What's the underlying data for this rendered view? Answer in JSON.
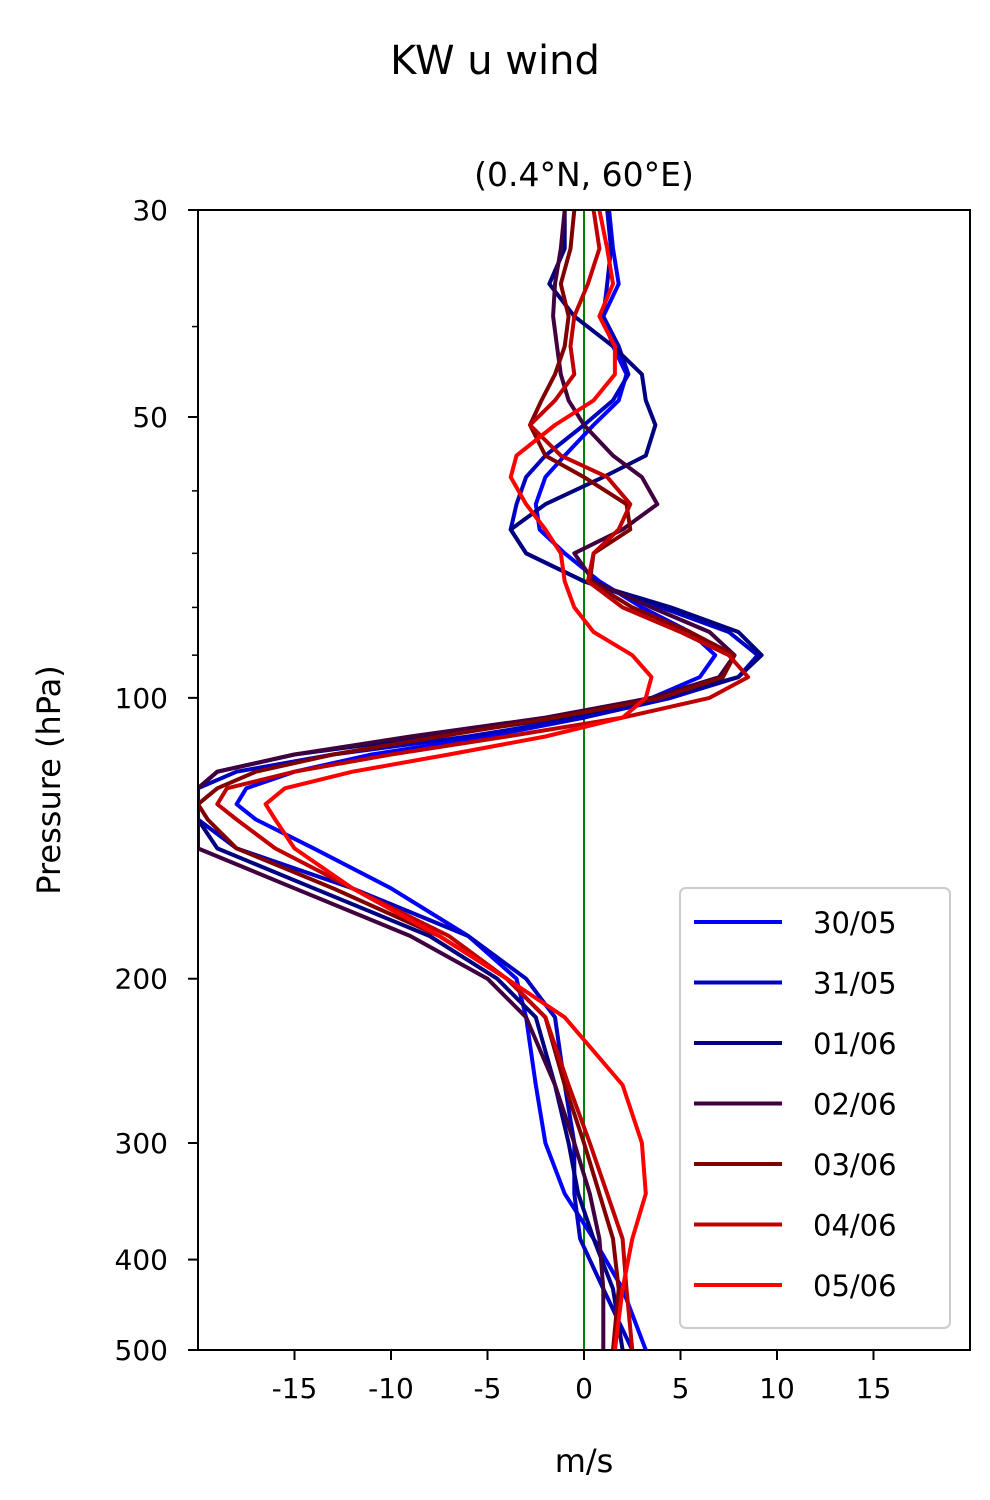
{
  "chart_data": {
    "type": "line",
    "title": "KW u wind",
    "subtitle": "(0.4°N, 60°E)",
    "xlabel": "m/s",
    "ylabel": "Pressure (hPa)",
    "xlim": [
      -20,
      20
    ],
    "ylim": [
      500,
      30
    ],
    "y_scale": "log",
    "xticks": [
      -15,
      -10,
      -5,
      0,
      5,
      10,
      15
    ],
    "xtick_labels": [
      "-15",
      "-10",
      "-5",
      "0",
      "5",
      "10",
      "15"
    ],
    "yticks": [
      30,
      50,
      100,
      200,
      300,
      400,
      500
    ],
    "ytick_labels": [
      "30",
      "50",
      "100",
      "200",
      "300",
      "400",
      "500"
    ],
    "grid": false,
    "legend_position": "lower-right",
    "reference_line": {
      "x": 0,
      "color": "#008000"
    },
    "series": [
      {
        "name": "30/05",
        "color": "#0000ff",
        "x": [
          1.3,
          1.5,
          1.8,
          1.0,
          1.5,
          2.2,
          1.8,
          0.5,
          -1.0,
          -2.0,
          -2.5,
          -2.3,
          -1.0,
          0.8,
          3.0,
          5.5,
          6.8,
          6.0,
          3.5,
          0.0,
          -5.0,
          -11.0,
          -15.0,
          -17.5,
          -18.0,
          -17.0,
          -14.0,
          -10.0,
          -6.0,
          -3.5,
          -3.0,
          -2.5,
          -2.0,
          -1.0,
          0.5,
          2.0,
          3.2
        ],
        "y": [
          30,
          33,
          36,
          39,
          42,
          45,
          48,
          51,
          55,
          58,
          62,
          66,
          70,
          75,
          80,
          85,
          90,
          95,
          100,
          105,
          110,
          115,
          120,
          125,
          130,
          135,
          145,
          160,
          180,
          200,
          220,
          260,
          300,
          340,
          380,
          430,
          500
        ]
      },
      {
        "name": "31/05",
        "color": "#0000c0",
        "x": [
          1.2,
          1.4,
          1.2,
          1.0,
          1.8,
          2.3,
          1.5,
          0.0,
          -2.0,
          -3.0,
          -3.5,
          -3.8,
          -3.0,
          0.0,
          4.0,
          7.5,
          9.0,
          8.0,
          4.5,
          0.0,
          -6.0,
          -13.0,
          -18.0,
          -20.0,
          -20.0,
          -20.0,
          -18.0,
          -12.0,
          -6.0,
          -3.0,
          -1.5,
          -1.0,
          -0.5,
          -0.5,
          -0.2,
          1.0,
          2.5
        ],
        "y": [
          30,
          33,
          36,
          39,
          42,
          45,
          48,
          51,
          55,
          58,
          62,
          66,
          70,
          75,
          80,
          85,
          90,
          95,
          100,
          105,
          110,
          115,
          120,
          125,
          130,
          135,
          145,
          160,
          180,
          200,
          220,
          260,
          300,
          340,
          380,
          430,
          500
        ]
      },
      {
        "name": "01/06",
        "color": "#000080",
        "x": [
          -1.0,
          -1.0,
          -1.8,
          -0.5,
          1.5,
          3.0,
          3.2,
          3.7,
          3.2,
          1.0,
          -2.0,
          -3.8,
          -3.0,
          0.0,
          4.5,
          8.0,
          9.2,
          8.0,
          4.0,
          -1.0,
          -8.0,
          -15.0,
          -19.0,
          -20.0,
          -20.0,
          -20.0,
          -19.0,
          -14.0,
          -8.0,
          -4.5,
          -2.5,
          -1.5,
          -0.8,
          -0.3,
          0.5,
          1.5,
          2.0
        ],
        "y": [
          30,
          33,
          36,
          39,
          42,
          45,
          48,
          51,
          55,
          58,
          62,
          66,
          70,
          75,
          80,
          85,
          90,
          95,
          100,
          105,
          110,
          115,
          120,
          125,
          130,
          135,
          145,
          160,
          180,
          200,
          220,
          260,
          300,
          340,
          380,
          430,
          500
        ]
      },
      {
        "name": "02/06",
        "color": "#400040",
        "x": [
          -1.0,
          -1.2,
          -1.5,
          -1.6,
          -1.4,
          -1.2,
          -0.8,
          0.0,
          1.5,
          3.0,
          3.8,
          2.0,
          -0.5,
          0.5,
          3.5,
          6.5,
          7.8,
          7.0,
          3.5,
          -2.0,
          -9.0,
          -15.0,
          -19.0,
          -20.0,
          -20.0,
          -20.0,
          -20.0,
          -15.0,
          -9.0,
          -5.0,
          -3.0,
          -1.5,
          -0.5,
          0.3,
          0.8,
          1.0,
          1.0
        ],
        "y": [
          30,
          33,
          36,
          39,
          42,
          45,
          48,
          51,
          55,
          58,
          62,
          66,
          70,
          75,
          80,
          85,
          90,
          95,
          100,
          105,
          110,
          115,
          120,
          125,
          130,
          135,
          145,
          160,
          180,
          200,
          220,
          260,
          300,
          340,
          380,
          430,
          500
        ]
      },
      {
        "name": "03/06",
        "color": "#800000",
        "x": [
          -0.5,
          -0.7,
          -1.2,
          -0.8,
          -1.0,
          -1.5,
          -2.2,
          -2.8,
          -2.0,
          0.0,
          2.2,
          2.4,
          0.5,
          0.3,
          2.5,
          5.5,
          7.8,
          7.2,
          4.0,
          -1.5,
          -7.5,
          -13.0,
          -17.0,
          -19.0,
          -20.0,
          -19.5,
          -18.0,
          -13.0,
          -7.5,
          -4.0,
          -2.0,
          -1.0,
          0.0,
          0.8,
          1.5,
          1.8,
          1.5
        ],
        "y": [
          30,
          33,
          36,
          39,
          42,
          45,
          48,
          51,
          55,
          58,
          62,
          66,
          70,
          75,
          80,
          85,
          90,
          95,
          100,
          105,
          110,
          115,
          120,
          125,
          130,
          135,
          145,
          160,
          180,
          200,
          220,
          260,
          300,
          340,
          380,
          430,
          500
        ]
      },
      {
        "name": "04/06",
        "color": "#c00000",
        "x": [
          0.5,
          0.8,
          0.2,
          -0.5,
          -0.7,
          -0.5,
          -1.5,
          -2.8,
          -1.2,
          1.2,
          2.4,
          1.8,
          0.5,
          0.2,
          2.0,
          5.0,
          7.5,
          8.5,
          6.5,
          2.0,
          -4.0,
          -10.0,
          -15.0,
          -18.5,
          -19.0,
          -18.0,
          -16.0,
          -12.0,
          -7.0,
          -4.0,
          -2.0,
          -0.8,
          0.3,
          1.2,
          2.0,
          2.2,
          2.5
        ],
        "y": [
          30,
          33,
          36,
          39,
          42,
          45,
          48,
          51,
          55,
          58,
          62,
          66,
          70,
          75,
          80,
          85,
          90,
          95,
          100,
          105,
          110,
          115,
          120,
          125,
          130,
          135,
          145,
          160,
          180,
          200,
          220,
          260,
          300,
          340,
          380,
          430,
          500
        ]
      },
      {
        "name": "05/06",
        "color": "#ff0000",
        "x": [
          0.8,
          1.2,
          1.5,
          0.8,
          1.6,
          1.6,
          0.5,
          -1.5,
          -3.5,
          -3.8,
          -3.0,
          -2.0,
          -1.2,
          -1.0,
          -0.5,
          0.5,
          2.5,
          3.5,
          3.2,
          2.0,
          -2.0,
          -7.0,
          -12.0,
          -15.5,
          -16.5,
          -16.0,
          -15.0,
          -12.0,
          -7.5,
          -4.0,
          -1.0,
          2.0,
          3.0,
          3.2,
          2.5,
          2.0,
          1.6
        ],
        "y": [
          30,
          33,
          36,
          39,
          42,
          45,
          48,
          51,
          55,
          58,
          62,
          66,
          70,
          75,
          80,
          85,
          90,
          95,
          100,
          105,
          110,
          115,
          120,
          125,
          130,
          135,
          145,
          160,
          180,
          200,
          220,
          260,
          300,
          340,
          380,
          430,
          500
        ]
      }
    ]
  }
}
